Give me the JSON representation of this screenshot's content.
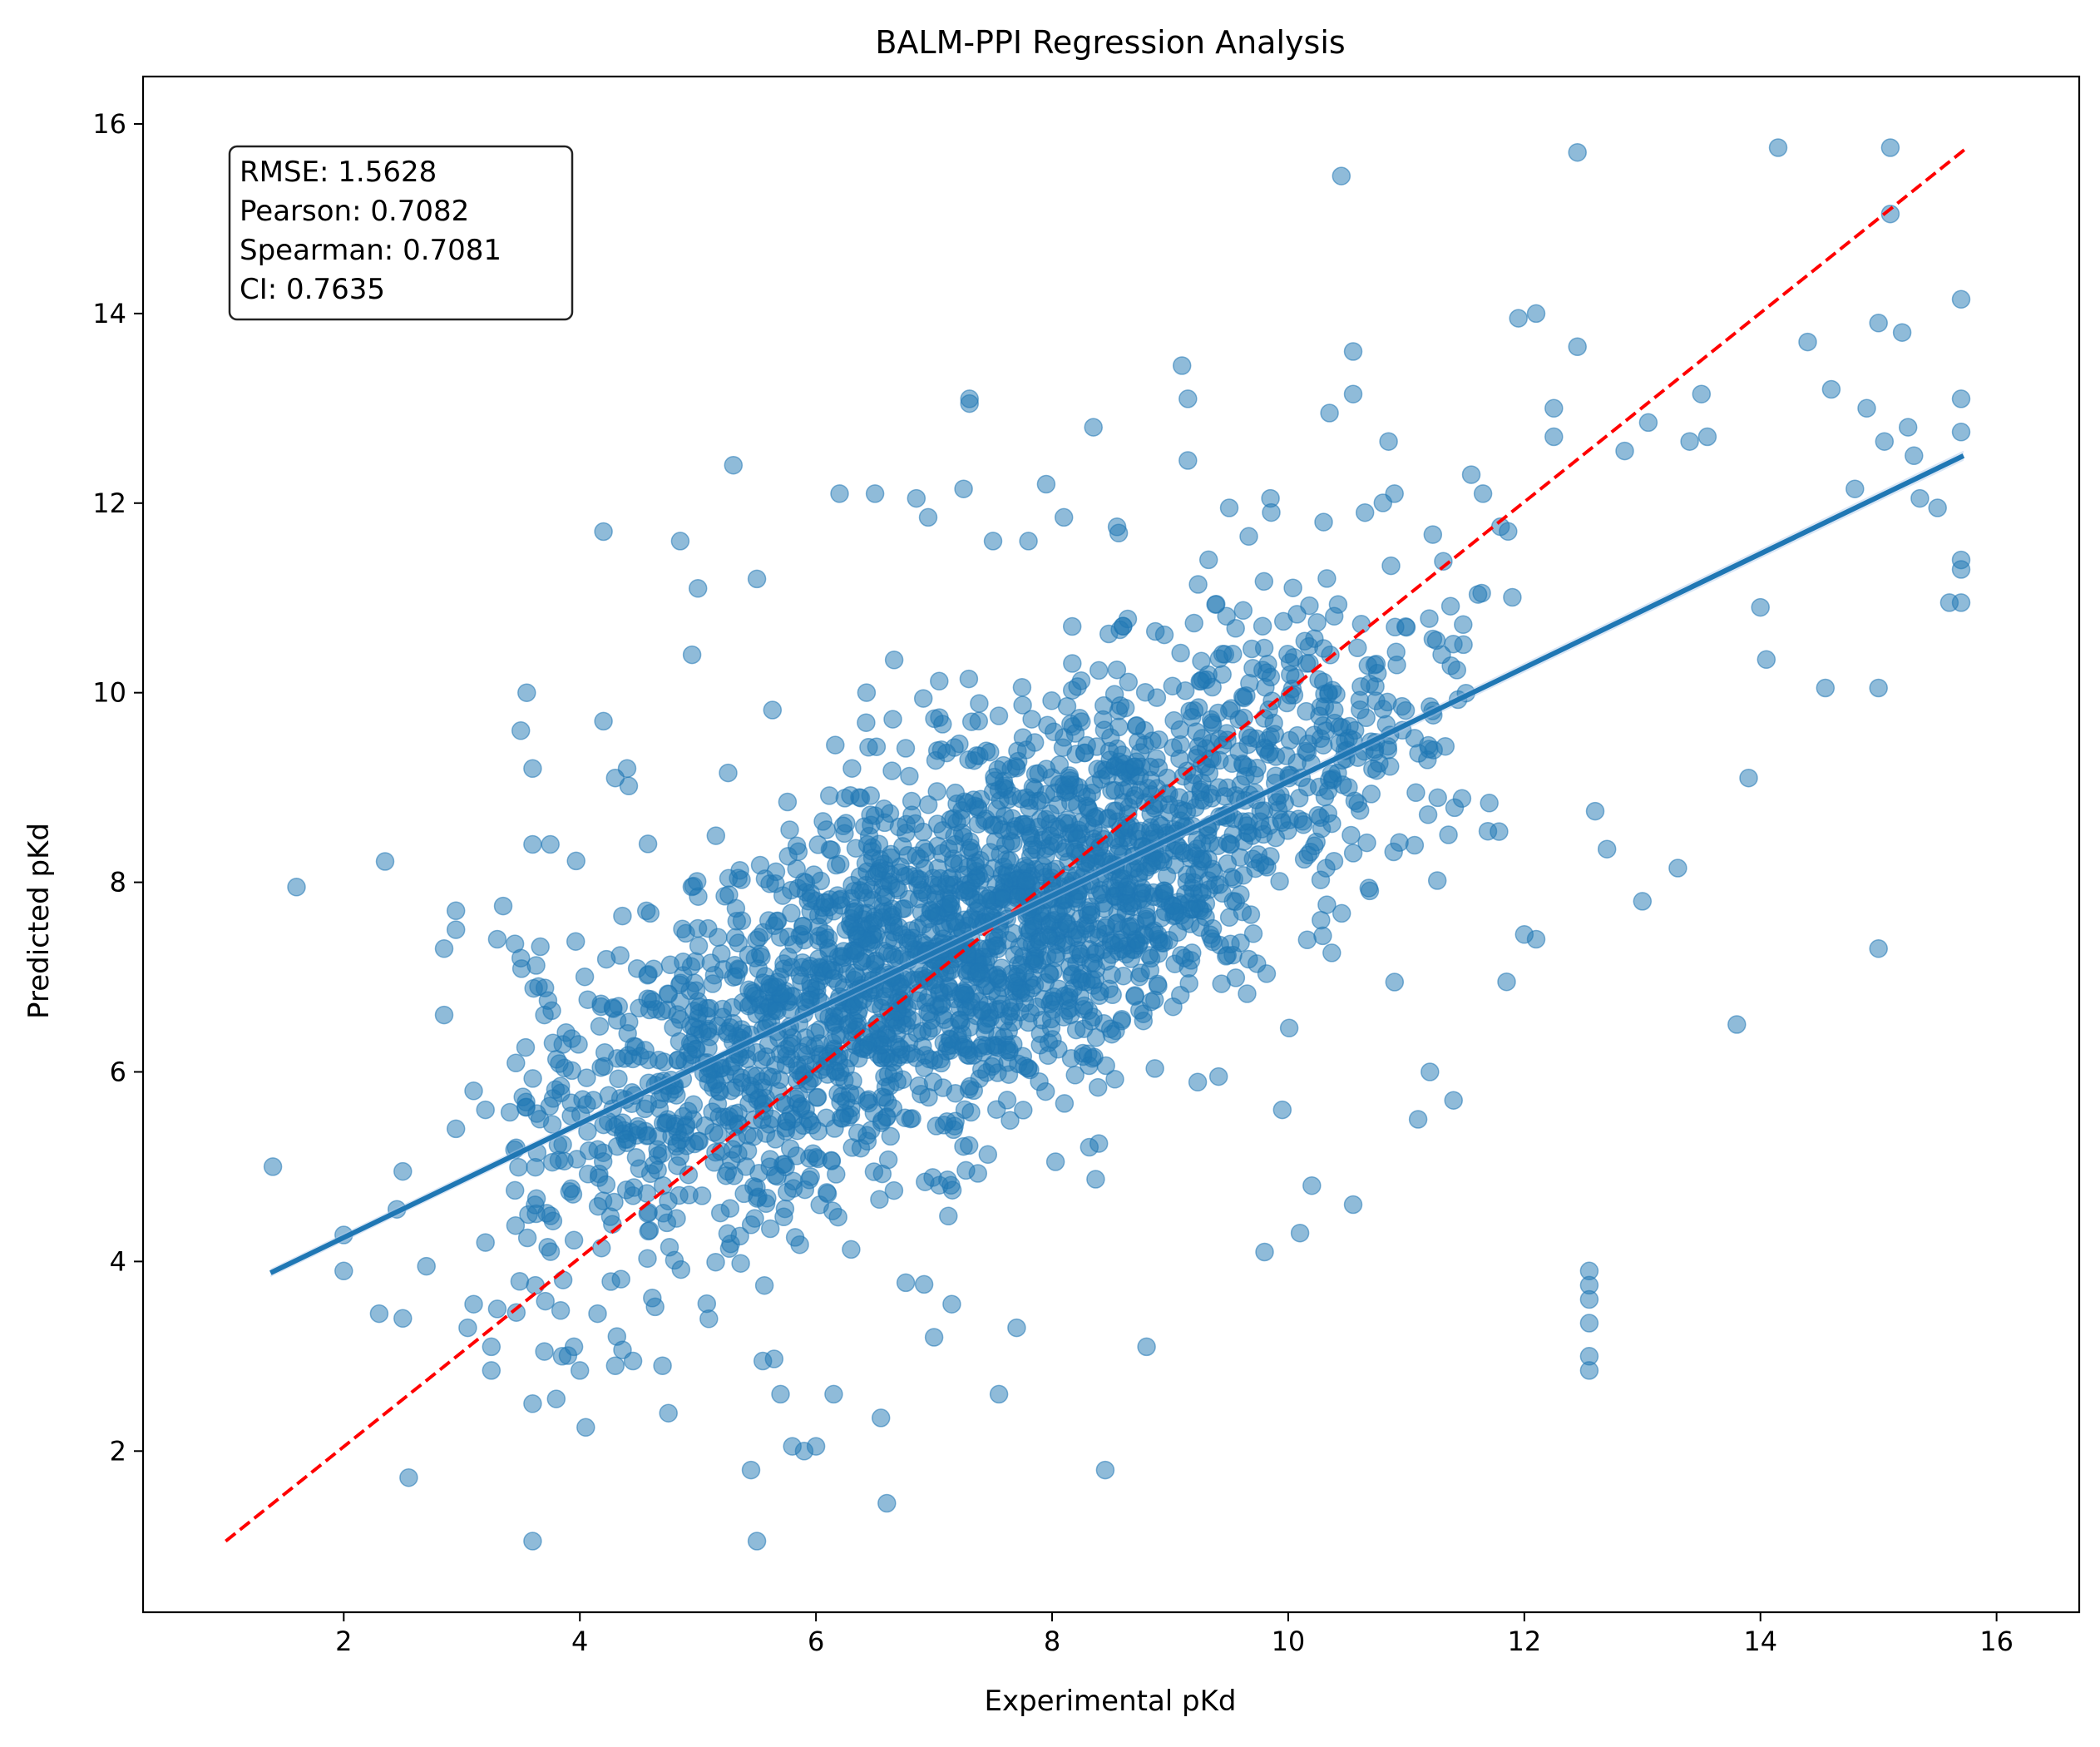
{
  "chart_data": {
    "type": "scatter",
    "title": "BALM-PPI Regression Analysis",
    "xlabel": "Experimental pKd",
    "ylabel": "Predicted pKd",
    "xlim": [
      0.3,
      16.7
    ],
    "ylim": [
      0.3,
      16.5
    ],
    "xticks": [
      2,
      4,
      6,
      8,
      10,
      12,
      14,
      16
    ],
    "yticks": [
      2,
      4,
      6,
      8,
      10,
      12,
      14,
      16
    ],
    "grid": false,
    "stats_box": {
      "placement": "top-left",
      "lines": [
        "RMSE: 1.5628",
        "Pearson: 0.7082",
        "Spearman: 0.7081",
        "CI: 0.7635"
      ]
    },
    "identity_line": {
      "x": [
        1.0,
        15.75
      ],
      "y": [
        1.05,
        15.75
      ],
      "color": "#ff0000",
      "style": "dashed"
    },
    "fit_line": {
      "x": [
        1.38,
        15.72
      ],
      "y": [
        3.88,
        12.5
      ],
      "color": "#1f77b4"
    },
    "point_color": "#1f77b4",
    "points": [
      [
        1.4,
        5.0
      ],
      [
        1.6,
        7.95
      ],
      [
        2.0,
        3.9
      ],
      [
        2.0,
        4.28
      ],
      [
        2.35,
        8.22
      ],
      [
        2.5,
        4.95
      ],
      [
        2.5,
        3.4
      ],
      [
        2.55,
        1.72
      ],
      [
        2.3,
        3.45
      ],
      [
        2.45,
        4.55
      ],
      [
        2.7,
        3.95
      ],
      [
        2.85,
        6.6
      ],
      [
        2.85,
        7.3
      ],
      [
        2.95,
        7.7
      ],
      [
        2.95,
        7.5
      ],
      [
        2.95,
        5.4
      ],
      [
        3.1,
        5.8
      ],
      [
        3.2,
        5.6
      ],
      [
        3.2,
        4.2
      ],
      [
        3.05,
        3.3
      ],
      [
        3.1,
        3.55
      ],
      [
        3.25,
        3.1
      ],
      [
        3.25,
        2.85
      ],
      [
        3.3,
        3.5
      ],
      [
        3.3,
        7.4
      ],
      [
        3.35,
        7.75
      ],
      [
        3.45,
        7.35
      ],
      [
        3.5,
        7.2
      ],
      [
        3.55,
        10.0
      ],
      [
        3.5,
        9.6
      ],
      [
        3.6,
        8.4
      ],
      [
        3.6,
        9.2
      ],
      [
        3.65,
        6.9
      ],
      [
        3.7,
        6.6
      ],
      [
        3.75,
        8.4
      ],
      [
        3.6,
        2.5
      ],
      [
        3.6,
        1.05
      ],
      [
        3.7,
        3.05
      ],
      [
        3.8,
        2.55
      ],
      [
        3.85,
        3.0
      ],
      [
        3.95,
        3.1
      ],
      [
        4.05,
        2.25
      ],
      [
        4.0,
        2.85
      ],
      [
        4.15,
        3.45
      ],
      [
        4.2,
        11.7
      ],
      [
        4.2,
        9.7
      ],
      [
        4.3,
        9.1
      ],
      [
        4.4,
        9.2
      ],
      [
        4.3,
        2.9
      ],
      [
        4.45,
        2.95
      ],
      [
        4.7,
        2.9
      ],
      [
        4.75,
        2.4
      ],
      [
        4.85,
        11.6
      ],
      [
        4.95,
        10.4
      ],
      [
        5.0,
        11.1
      ],
      [
        5.3,
        12.4
      ],
      [
        5.5,
        11.2
      ],
      [
        5.45,
        1.8
      ],
      [
        5.5,
        1.05
      ],
      [
        5.55,
        2.95
      ],
      [
        5.7,
        2.6
      ],
      [
        5.8,
        2.05
      ],
      [
        5.9,
        2.0
      ],
      [
        6.0,
        2.05
      ],
      [
        6.15,
        2.6
      ],
      [
        6.2,
        12.1
      ],
      [
        6.5,
        12.1
      ],
      [
        6.6,
        1.45
      ],
      [
        6.55,
        2.35
      ],
      [
        6.85,
        12.05
      ],
      [
        6.95,
        11.85
      ],
      [
        7.0,
        3.2
      ],
      [
        7.15,
        3.55
      ],
      [
        7.3,
        13.05
      ],
      [
        7.3,
        13.1
      ],
      [
        7.25,
        12.15
      ],
      [
        7.5,
        11.6
      ],
      [
        7.55,
        2.6
      ],
      [
        7.7,
        3.3
      ],
      [
        7.8,
        11.6
      ],
      [
        7.95,
        12.2
      ],
      [
        8.1,
        11.85
      ],
      [
        8.35,
        12.8
      ],
      [
        8.45,
        1.8
      ],
      [
        8.55,
        11.75
      ],
      [
        8.8,
        3.1
      ],
      [
        9.1,
        13.45
      ],
      [
        9.15,
        13.1
      ],
      [
        9.15,
        12.45
      ],
      [
        9.5,
        11.95
      ],
      [
        9.8,
        4.1
      ],
      [
        9.85,
        12.05
      ],
      [
        9.95,
        5.6
      ],
      [
        10.1,
        4.3
      ],
      [
        10.2,
        4.8
      ],
      [
        10.3,
        11.8
      ],
      [
        10.35,
        12.95
      ],
      [
        10.45,
        15.45
      ],
      [
        10.55,
        13.6
      ],
      [
        10.55,
        13.15
      ],
      [
        10.55,
        4.6
      ],
      [
        10.65,
        11.9
      ],
      [
        10.85,
        12.65
      ],
      [
        10.9,
        12.1
      ],
      [
        11.1,
        5.5
      ],
      [
        11.2,
        6.0
      ],
      [
        11.4,
        5.7
      ],
      [
        11.55,
        12.3
      ],
      [
        11.65,
        12.1
      ],
      [
        11.85,
        6.95
      ],
      [
        11.95,
        13.95
      ],
      [
        12.0,
        7.45
      ],
      [
        12.1,
        14.0
      ],
      [
        12.1,
        7.4
      ],
      [
        12.25,
        13.0
      ],
      [
        12.25,
        12.7
      ],
      [
        12.45,
        15.7
      ],
      [
        12.45,
        13.65
      ],
      [
        12.55,
        3.9
      ],
      [
        12.55,
        3.75
      ],
      [
        12.55,
        3.6
      ],
      [
        12.55,
        3.35
      ],
      [
        12.55,
        3.0
      ],
      [
        12.55,
        2.85
      ],
      [
        12.6,
        8.75
      ],
      [
        12.7,
        8.35
      ],
      [
        12.85,
        12.55
      ],
      [
        13.0,
        7.8
      ],
      [
        13.05,
        12.85
      ],
      [
        13.3,
        8.15
      ],
      [
        13.4,
        12.65
      ],
      [
        13.5,
        13.15
      ],
      [
        13.55,
        12.7
      ],
      [
        13.8,
        6.5
      ],
      [
        13.9,
        9.1
      ],
      [
        14.0,
        10.9
      ],
      [
        14.05,
        10.35
      ],
      [
        14.15,
        15.75
      ],
      [
        14.4,
        13.7
      ],
      [
        14.55,
        10.05
      ],
      [
        14.6,
        13.2
      ],
      [
        14.8,
        12.15
      ],
      [
        14.9,
        13.0
      ],
      [
        15.0,
        13.9
      ],
      [
        15.05,
        12.65
      ],
      [
        15.0,
        10.05
      ],
      [
        15.0,
        7.3
      ],
      [
        15.1,
        15.75
      ],
      [
        15.1,
        15.05
      ],
      [
        15.2,
        13.8
      ],
      [
        15.25,
        12.8
      ],
      [
        15.3,
        12.5
      ],
      [
        15.35,
        12.05
      ],
      [
        15.5,
        11.95
      ],
      [
        15.6,
        10.95
      ],
      [
        15.7,
        14.15
      ],
      [
        15.7,
        13.1
      ],
      [
        15.7,
        12.75
      ],
      [
        15.7,
        11.4
      ],
      [
        15.7,
        11.3
      ],
      [
        15.7,
        10.95
      ]
    ]
  }
}
